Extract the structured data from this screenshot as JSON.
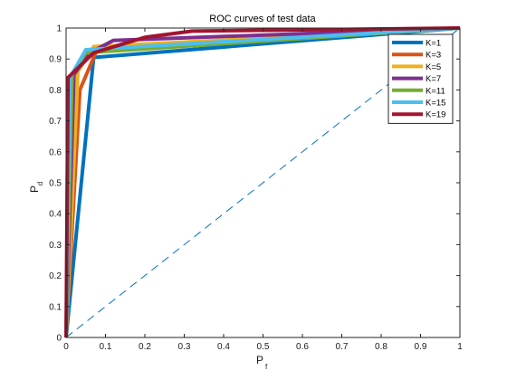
{
  "chart_data": {
    "type": "line",
    "title": "ROC curves of test data",
    "xlabel": {
      "main": "P",
      "sub": "f"
    },
    "ylabel": {
      "main": "P",
      "sub": "d"
    },
    "xlim": [
      0,
      1
    ],
    "ylim": [
      0,
      1
    ],
    "xticks": [
      "0",
      "0.1",
      "0.2",
      "0.3",
      "0.4",
      "0.5",
      "0.6",
      "0.7",
      "0.8",
      "0.9",
      "1"
    ],
    "yticks": [
      "0",
      "0.1",
      "0.2",
      "0.3",
      "0.4",
      "0.5",
      "0.6",
      "0.7",
      "0.8",
      "0.9",
      "1"
    ],
    "grid": false,
    "legend_position": "top-right",
    "reference_line": {
      "style": "dashed",
      "color": "#0072bd",
      "x": [
        0,
        1
      ],
      "y": [
        0,
        1
      ]
    },
    "series": [
      {
        "name": "K=1",
        "color": "#0072bd",
        "x": [
          0,
          0.07,
          1
        ],
        "y": [
          0,
          0.905,
          1
        ]
      },
      {
        "name": "K=3",
        "color": "#d95319",
        "x": [
          0,
          0.035,
          0.08,
          1
        ],
        "y": [
          0,
          0.8,
          0.935,
          1
        ]
      },
      {
        "name": "K=5",
        "color": "#edb120",
        "x": [
          0,
          0.03,
          0.07,
          1
        ],
        "y": [
          0,
          0.86,
          0.94,
          1
        ]
      },
      {
        "name": "K=7",
        "color": "#7e2f8e",
        "x": [
          0,
          0.02,
          0.06,
          0.12,
          1
        ],
        "y": [
          0,
          0.85,
          0.92,
          0.96,
          1
        ]
      },
      {
        "name": "K=11",
        "color": "#77ac30",
        "x": [
          0,
          0.015,
          0.05,
          1
        ],
        "y": [
          0,
          0.85,
          0.92,
          1
        ]
      },
      {
        "name": "K=15",
        "color": "#4dbeee",
        "x": [
          0,
          0.01,
          0.05,
          1
        ],
        "y": [
          0,
          0.84,
          0.93,
          1
        ]
      },
      {
        "name": "K=19",
        "color": "#a2142f",
        "x": [
          0,
          0.005,
          0.07,
          0.2,
          0.32,
          1
        ],
        "y": [
          0,
          0.84,
          0.92,
          0.97,
          0.99,
          1
        ]
      }
    ]
  }
}
